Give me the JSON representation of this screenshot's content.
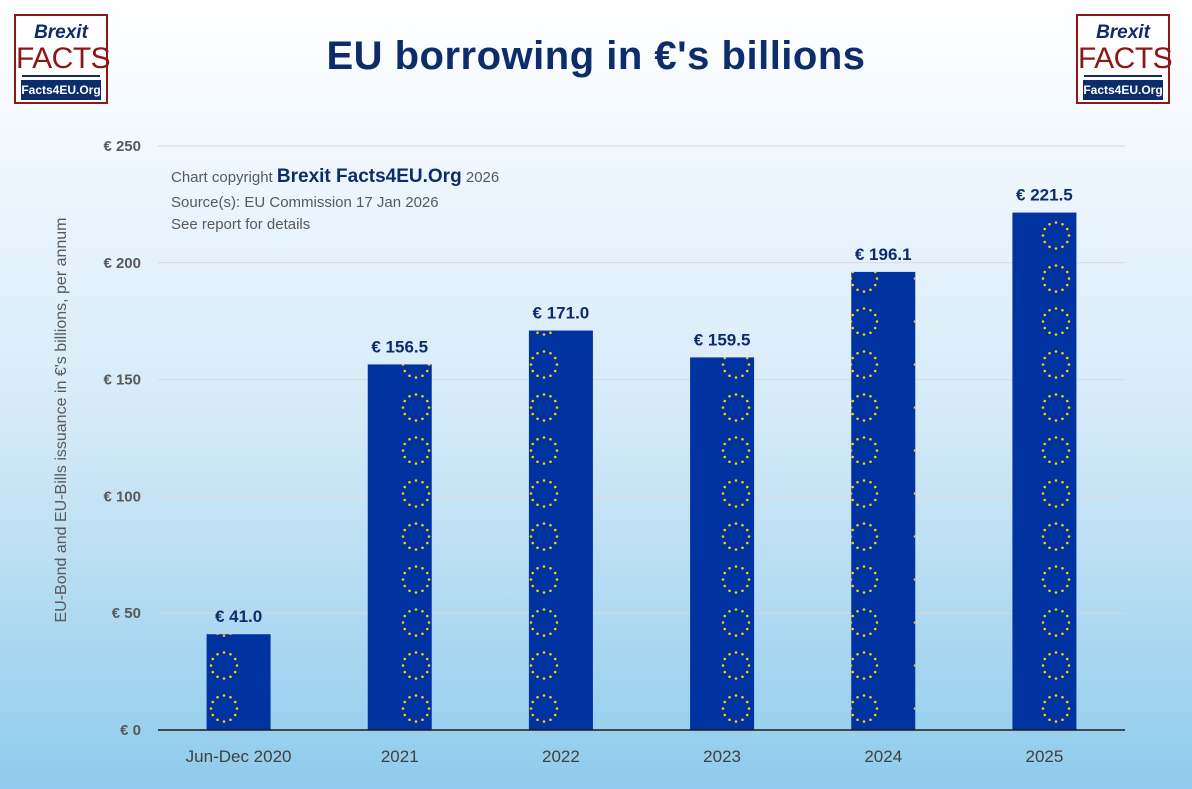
{
  "title": "EU borrowing in €'s billions",
  "logo": {
    "line1": "Brexit",
    "line2": "FACTS",
    "line3": "Facts4EU.Org"
  },
  "copyright": {
    "prefix": "Chart copyright ",
    "brand": "Brexit Facts4EU.Org",
    "year": " 2026",
    "source": "Source(s): EU Commission 17 Jan 2026",
    "note": "See report for details"
  },
  "colors": {
    "bar": "#0033a0",
    "star": "#ffcc00",
    "title": "#0d2c6c",
    "grid": "#d9d9d9"
  },
  "chart_data": {
    "type": "bar",
    "title": "EU borrowing in €'s billions",
    "ylabel": "EU-Bond and EU-Bills issuance in €'s billions, per annum",
    "xlabel": "",
    "categories": [
      "Jun-Dec 2020",
      "2021",
      "2022",
      "2023",
      "2024",
      "2025"
    ],
    "values": [
      41.0,
      156.5,
      171.0,
      159.5,
      196.1,
      221.5
    ],
    "value_labels": [
      "€ 41.0",
      "€ 156.5",
      "€ 171.0",
      "€ 159.5",
      "€ 196.1",
      "€ 221.5"
    ],
    "ylim": [
      0,
      250
    ],
    "yticks": [
      0,
      50,
      100,
      150,
      200,
      250
    ],
    "ytick_labels": [
      "€ 0",
      "€ 50",
      "€ 100",
      "€ 150",
      "€ 200",
      "€ 250"
    ],
    "grid": true,
    "legend": "none"
  }
}
